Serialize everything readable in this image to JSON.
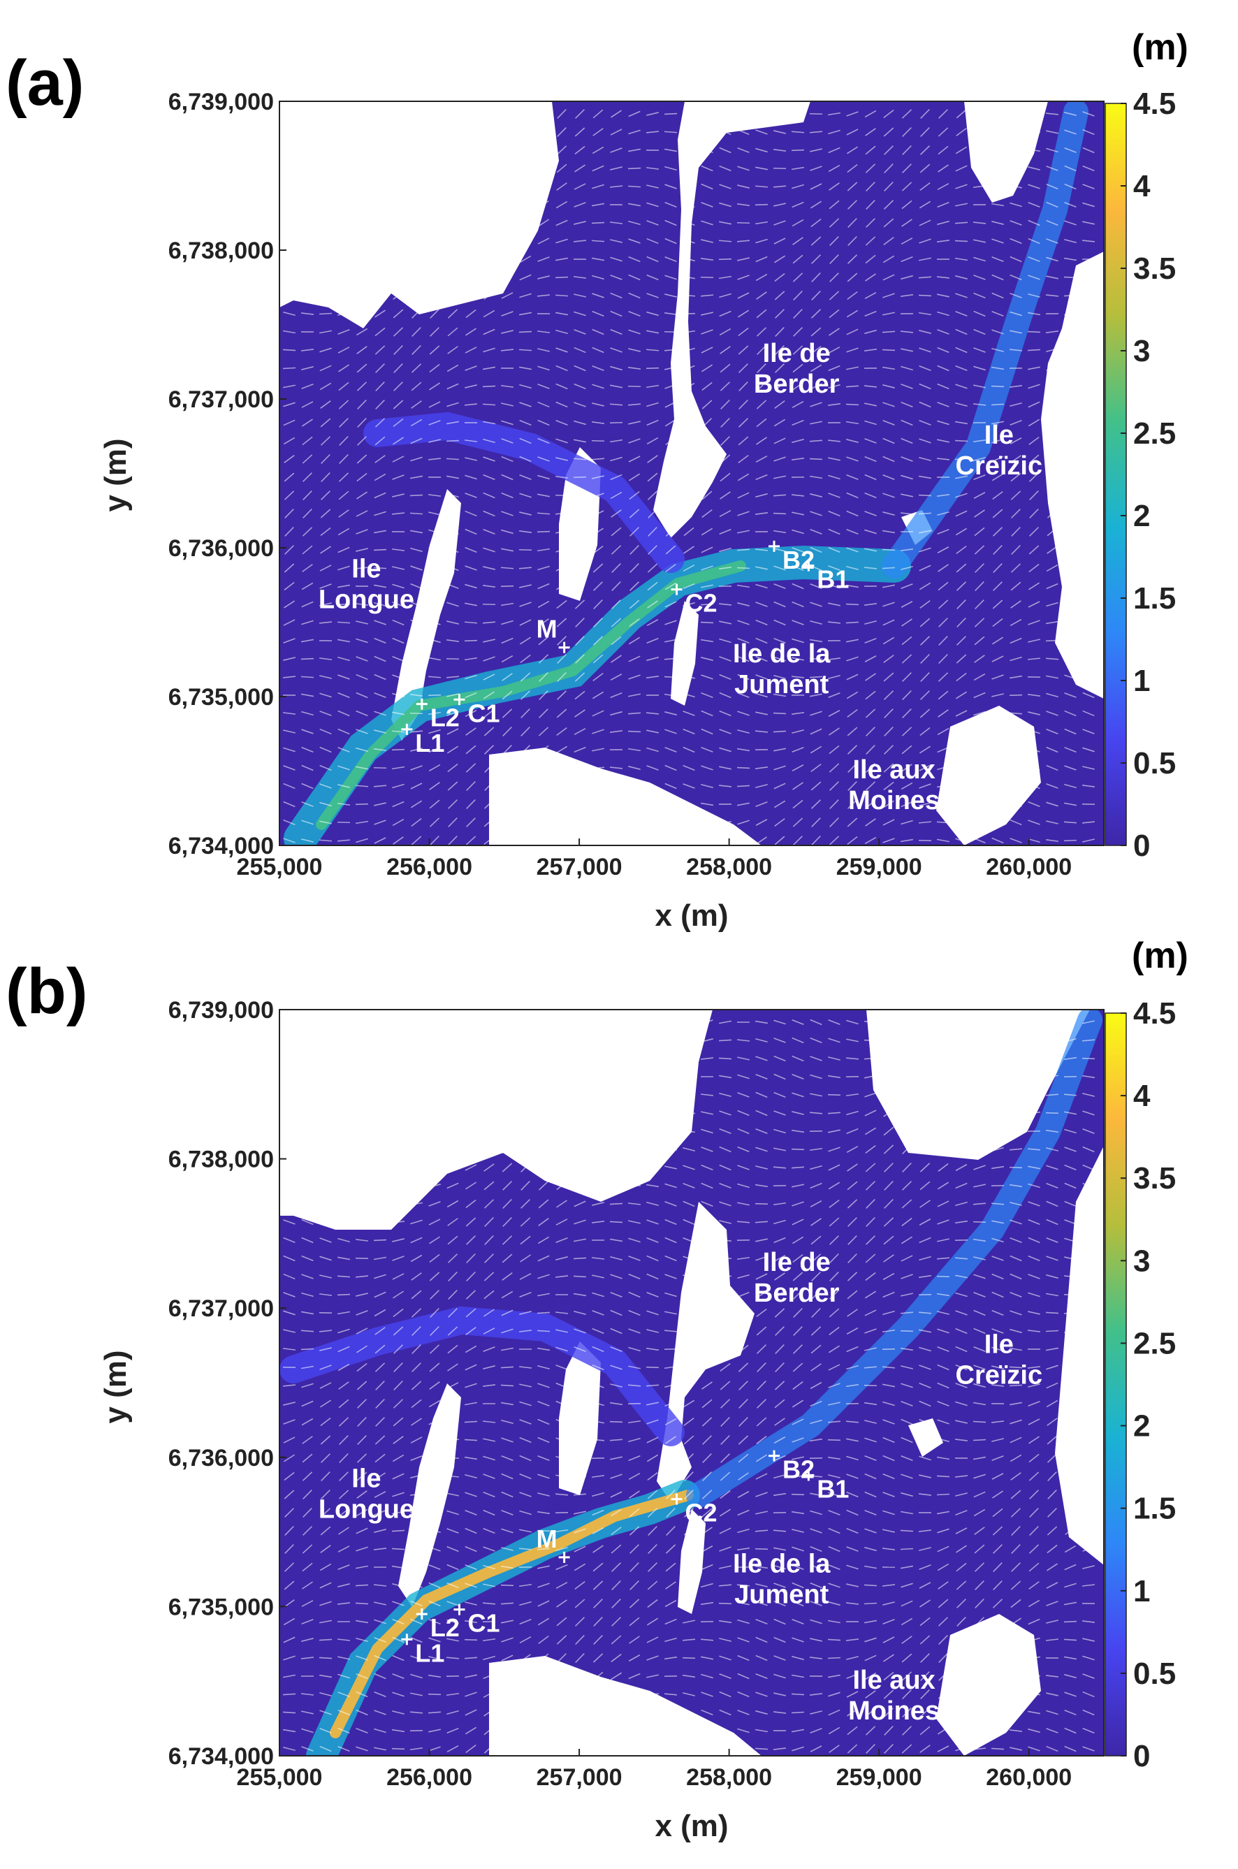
{
  "chart_data": [
    {
      "panel": "(a)",
      "type": "heatmap",
      "xlabel": "x (m)",
      "ylabel": "y (m)",
      "xlim": [
        255000,
        260500
      ],
      "ylim": [
        6734000,
        6739000
      ],
      "x_ticks": [
        "255,000",
        "256,000",
        "257,000",
        "258,000",
        "259,000",
        "260,000"
      ],
      "y_ticks": [
        "6,734,000",
        "6,735,000",
        "6,736,000",
        "6,737,000",
        "6,738,000",
        "6,739,000"
      ],
      "colorbar": {
        "unit": "(m)",
        "min": 0,
        "max": 4.5,
        "colormap": [
          "#3e26a8",
          "#4745f0",
          "#2e87f7",
          "#1ab2d4",
          "#42c08a",
          "#b5be3c",
          "#fbb83c",
          "#f9fb15"
        ],
        "ticks": [
          "0",
          "0.5",
          "1",
          "1.5",
          "2",
          "2.5",
          "3",
          "3.5",
          "4",
          "4.5"
        ]
      },
      "background_color": "#3e26a8",
      "land_color": "#ffffff",
      "places": [
        {
          "lines": [
            "Ile de",
            "Berder"
          ],
          "x": 258450,
          "y": 6737250
        },
        {
          "lines": [
            "Ile",
            "Creïzic"
          ],
          "x": 259800,
          "y": 6736700
        },
        {
          "lines": [
            "Ile",
            "Longue"
          ],
          "x": 255580,
          "y": 6735800
        },
        {
          "lines": [
            "Ile de la",
            "Jument"
          ],
          "x": 258350,
          "y": 6735230
        },
        {
          "lines": [
            "Ile aux",
            "Moines"
          ],
          "x": 259100,
          "y": 6734450
        }
      ],
      "points": [
        {
          "label": "B2",
          "x": 258300,
          "y": 6736010
        },
        {
          "label": "B1",
          "x": 258530,
          "y": 6735880
        },
        {
          "label": "C2",
          "x": 257650,
          "y": 6735720
        },
        {
          "label": "M",
          "x": 256900,
          "y": 6735330
        },
        {
          "label": "C1",
          "x": 256200,
          "y": 6734980
        },
        {
          "label": "L2",
          "x": 255950,
          "y": 6734950
        },
        {
          "label": "L1",
          "x": 255850,
          "y": 6734780
        }
      ]
    },
    {
      "panel": "(b)",
      "type": "heatmap",
      "xlabel": "x (m)",
      "ylabel": "y (m)",
      "xlim": [
        255000,
        260500
      ],
      "ylim": [
        6734000,
        6739000
      ],
      "x_ticks": [
        "255,000",
        "256,000",
        "257,000",
        "258,000",
        "259,000",
        "260,000"
      ],
      "y_ticks": [
        "6,734,000",
        "6,735,000",
        "6,736,000",
        "6,737,000",
        "6,738,000",
        "6,739,000"
      ],
      "colorbar": {
        "unit": "(m)",
        "min": 0,
        "max": 4.5,
        "colormap": [
          "#3e26a8",
          "#4745f0",
          "#2e87f7",
          "#1ab2d4",
          "#42c08a",
          "#b5be3c",
          "#fbb83c",
          "#f9fb15"
        ],
        "ticks": [
          "0",
          "0.5",
          "1",
          "1.5",
          "2",
          "2.5",
          "3",
          "3.5",
          "4",
          "4.5"
        ]
      },
      "background_color": "#3e26a8",
      "land_color": "#ffffff",
      "places": [
        {
          "lines": [
            "Ile de",
            "Berder"
          ],
          "x": 258450,
          "y": 6737250
        },
        {
          "lines": [
            "Ile",
            "Creïzic"
          ],
          "x": 259800,
          "y": 6736700
        },
        {
          "lines": [
            "Ile",
            "Longue"
          ],
          "x": 255580,
          "y": 6735800
        },
        {
          "lines": [
            "Ile de la",
            "Jument"
          ],
          "x": 258350,
          "y": 6735230
        },
        {
          "lines": [
            "Ile aux",
            "Moines"
          ],
          "x": 259100,
          "y": 6734450
        }
      ],
      "points": [
        {
          "label": "B2",
          "x": 258300,
          "y": 6736010
        },
        {
          "label": "B1",
          "x": 258530,
          "y": 6735880
        },
        {
          "label": "C2",
          "x": 257650,
          "y": 6735720
        },
        {
          "label": "M",
          "x": 256900,
          "y": 6735330
        },
        {
          "label": "C1",
          "x": 256200,
          "y": 6734980
        },
        {
          "label": "L2",
          "x": 255950,
          "y": 6734950
        },
        {
          "label": "L1",
          "x": 255850,
          "y": 6734780
        }
      ]
    }
  ]
}
